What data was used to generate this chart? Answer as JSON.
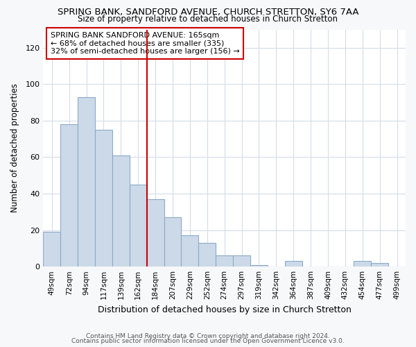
{
  "title": "SPRING BANK, SANDFORD AVENUE, CHURCH STRETTON, SY6 7AA",
  "subtitle": "Size of property relative to detached houses in Church Stretton",
  "xlabel": "Distribution of detached houses by size in Church Stretton",
  "ylabel": "Number of detached properties",
  "categories": [
    "49sqm",
    "72sqm",
    "94sqm",
    "117sqm",
    "139sqm",
    "162sqm",
    "184sqm",
    "207sqm",
    "229sqm",
    "252sqm",
    "274sqm",
    "297sqm",
    "319sqm",
    "342sqm",
    "364sqm",
    "387sqm",
    "409sqm",
    "432sqm",
    "454sqm",
    "477sqm",
    "499sqm"
  ],
  "values": [
    19,
    78,
    93,
    75,
    61,
    45,
    37,
    27,
    17,
    13,
    6,
    6,
    1,
    0,
    3,
    0,
    0,
    0,
    3,
    2,
    0
  ],
  "bar_color": "#ccd9e8",
  "bar_edge_color": "#8baac8",
  "vline_x": 5.5,
  "vline_color": "#cc0000",
  "annotation_text": "SPRING BANK SANDFORD AVENUE: 165sqm\n← 68% of detached houses are smaller (335)\n32% of semi-detached houses are larger (156) →",
  "annotation_box_color": "#ffffff",
  "annotation_box_edge": "#cc0000",
  "ylim": [
    0,
    130
  ],
  "yticks": [
    0,
    20,
    40,
    60,
    80,
    100,
    120
  ],
  "footer1": "Contains HM Land Registry data © Crown copyright and database right 2024.",
  "footer2": "Contains public sector information licensed under the Open Government Licence v3.0.",
  "bg_color": "#f7f8fa",
  "plot_bg_color": "#ffffff",
  "grid_color": "#d4dce8"
}
